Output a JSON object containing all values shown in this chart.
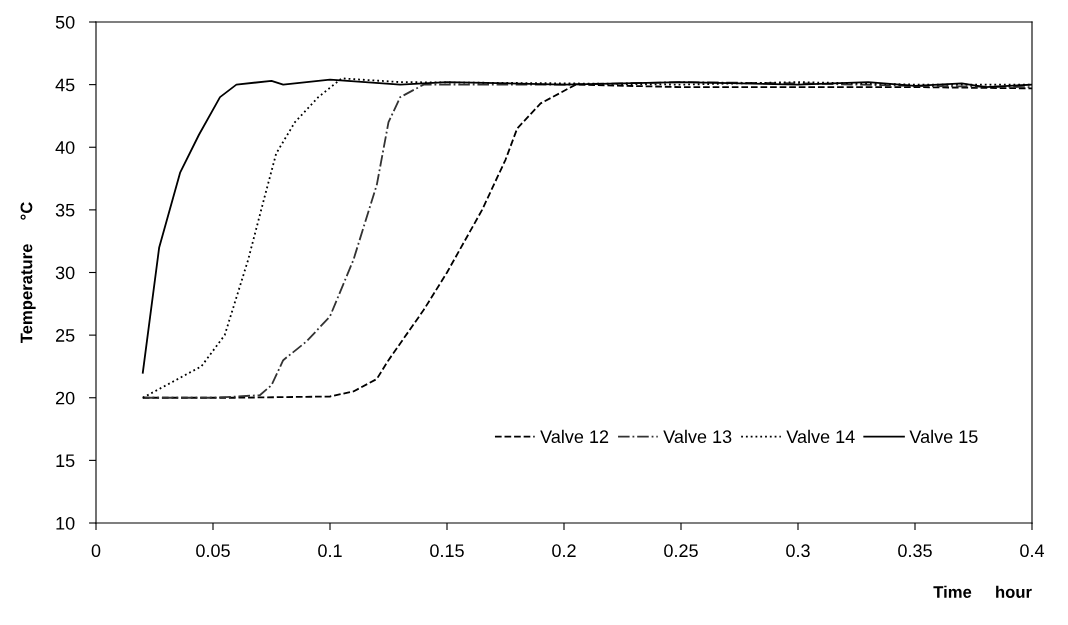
{
  "chart_data": {
    "type": "line",
    "xlabel": "Time     hour",
    "ylabel": "Temperature     °C",
    "xlim": [
      0,
      0.4
    ],
    "ylim": [
      10,
      50
    ],
    "xticks": [
      0,
      0.05,
      0.1,
      0.15,
      0.2,
      0.25,
      0.3,
      0.35,
      0.4
    ],
    "yticks": [
      10,
      15,
      20,
      25,
      30,
      35,
      40,
      45,
      50
    ],
    "grid": false,
    "legend": "bottom right",
    "marker": "none",
    "series": [
      {
        "name": "Valve 12",
        "color": "#000000",
        "line_style": "dashed",
        "x": [
          0.02,
          0.06,
          0.1,
          0.11,
          0.12,
          0.125,
          0.14,
          0.15,
          0.165,
          0.175,
          0.18,
          0.19,
          0.205,
          0.25,
          0.3,
          0.35,
          0.4
        ],
        "values": [
          20,
          20,
          20.1,
          20.5,
          21.5,
          23,
          27,
          30,
          35,
          39,
          41.5,
          43.5,
          45,
          44.8,
          44.8,
          44.8,
          44.7
        ]
      },
      {
        "name": "Valve 13",
        "color": "#333333",
        "line_style": "dashdot",
        "x": [
          0.02,
          0.05,
          0.07,
          0.075,
          0.08,
          0.09,
          0.1,
          0.11,
          0.12,
          0.125,
          0.13,
          0.14,
          0.2,
          0.25,
          0.3,
          0.35,
          0.4
        ],
        "values": [
          20,
          20,
          20.2,
          21,
          23,
          24.5,
          26.5,
          31,
          37,
          42,
          44,
          45,
          45,
          45.2,
          45.1,
          44.9,
          44.8
        ]
      },
      {
        "name": "Valve 14",
        "color": "#000000",
        "line_style": "dotted",
        "x": [
          0.02,
          0.03,
          0.045,
          0.055,
          0.065,
          0.072,
          0.077,
          0.085,
          0.095,
          0.105,
          0.13,
          0.2,
          0.25,
          0.3,
          0.35,
          0.4
        ],
        "values": [
          20,
          21,
          22.5,
          25,
          31,
          36,
          39.5,
          42,
          44,
          45.5,
          45.2,
          45.1,
          45,
          45.2,
          45,
          45
        ]
      },
      {
        "name": "Valve 15",
        "color": "#000000",
        "line_style": "solid",
        "x": [
          0.02,
          0.027,
          0.036,
          0.044,
          0.053,
          0.06,
          0.075,
          0.08,
          0.1,
          0.13,
          0.15,
          0.2,
          0.25,
          0.3,
          0.33,
          0.35,
          0.37,
          0.38,
          0.4
        ],
        "values": [
          22,
          32,
          38,
          41,
          44,
          45,
          45.3,
          45,
          45.4,
          45,
          45.2,
          45,
          45.2,
          45,
          45.2,
          44.9,
          45.1,
          44.8,
          45
        ]
      }
    ]
  }
}
